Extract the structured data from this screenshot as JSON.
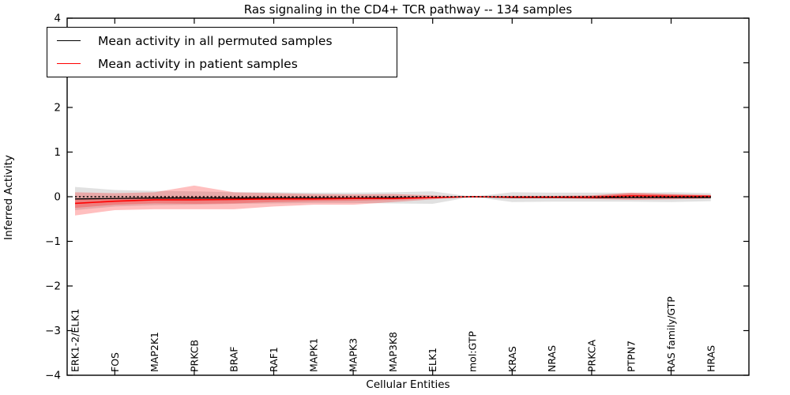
{
  "chart_data": {
    "type": "line",
    "title": "Ras signaling in the CD4+ TCR pathway -- 134 samples",
    "xlabel": "Cellular Entities",
    "ylabel": "Inferred Activity",
    "ylim": [
      -4,
      4
    ],
    "yticks": [
      -4,
      -3,
      -2,
      -1,
      0,
      1,
      2,
      3,
      4
    ],
    "grid": false,
    "legend_position": "upper left",
    "categories": [
      "ERK1-2/ELK1",
      "FOS",
      "MAP2K1",
      "PRKCB",
      "BRAF",
      "RAF1",
      "MAPK1",
      "MAPK3",
      "MAP3K8",
      "ELK1",
      "mol:GTP",
      "KRAS",
      "NRAS",
      "PRKCA",
      "PTPN7",
      "RAS family/GTP",
      "HRAS"
    ],
    "series": [
      {
        "name": "Mean activity in all permuted samples",
        "color": "#000000",
        "line_style": "solid",
        "values": [
          -0.05,
          -0.04,
          -0.03,
          -0.03,
          -0.03,
          -0.03,
          -0.03,
          -0.03,
          -0.02,
          -0.02,
          0.0,
          -0.02,
          -0.02,
          -0.02,
          -0.02,
          -0.02,
          -0.02
        ],
        "band_upper": [
          0.22,
          0.15,
          0.13,
          0.12,
          0.1,
          0.1,
          0.09,
          0.09,
          0.1,
          0.12,
          0.0,
          0.1,
          0.09,
          0.09,
          0.09,
          0.1,
          0.08
        ],
        "band_lower": [
          -0.3,
          -0.22,
          -0.19,
          -0.18,
          -0.16,
          -0.15,
          -0.14,
          -0.14,
          -0.15,
          -0.16,
          0.0,
          -0.12,
          -0.11,
          -0.11,
          -0.11,
          -0.12,
          -0.1
        ],
        "band_color": "#aaaaaa",
        "band_opacity": 0.35
      },
      {
        "name": "Mean activity in patient samples",
        "color": "#ff0000",
        "line_style": "solid",
        "values": [
          -0.15,
          -0.1,
          -0.07,
          -0.07,
          -0.06,
          -0.05,
          -0.05,
          -0.04,
          -0.04,
          -0.02,
          0.0,
          -0.01,
          -0.01,
          -0.01,
          0.02,
          0.01,
          0.01
        ],
        "band_upper": [
          0.1,
          0.08,
          0.1,
          0.25,
          0.1,
          0.08,
          0.06,
          0.05,
          0.06,
          0.03,
          0.0,
          0.02,
          0.02,
          0.03,
          0.09,
          0.06,
          0.04
        ],
        "band_lower": [
          -0.42,
          -0.3,
          -0.28,
          -0.28,
          -0.28,
          -0.22,
          -0.18,
          -0.18,
          -0.12,
          -0.06,
          0.0,
          -0.03,
          -0.03,
          -0.05,
          -0.07,
          -0.06,
          -0.04
        ],
        "inner_band_upper": [
          -0.05,
          -0.03,
          -0.01,
          0.0,
          -0.01,
          0.0,
          -0.01,
          0.0,
          -0.01,
          0.0,
          0.0,
          0.01,
          0.01,
          0.02,
          0.07,
          0.05,
          0.03
        ],
        "inner_band_lower": [
          -0.25,
          -0.18,
          -0.15,
          -0.16,
          -0.15,
          -0.12,
          -0.1,
          -0.09,
          -0.07,
          -0.04,
          0.0,
          -0.03,
          -0.03,
          -0.04,
          -0.03,
          -0.03,
          -0.01
        ],
        "band_color": "#ff0000",
        "band_opacity": 0.25
      }
    ],
    "reference_line": {
      "value": 0,
      "style": "dotted",
      "color": "#000000"
    }
  }
}
